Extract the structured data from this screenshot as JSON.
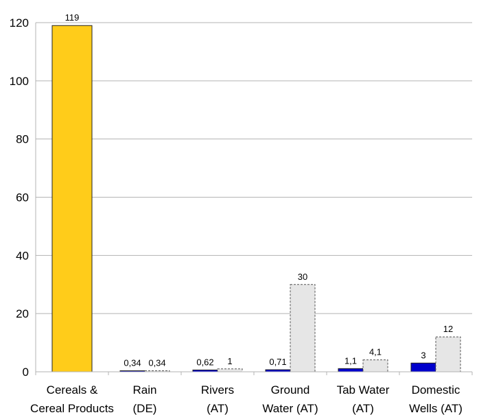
{
  "chart_data": {
    "type": "bar",
    "categories": [
      [
        "Cereals &",
        "Cereal Products"
      ],
      [
        "Rain",
        "(DE)"
      ],
      [
        "Rivers",
        "(AT)"
      ],
      [
        "Ground",
        "Water (AT)"
      ],
      [
        "Tab Water",
        "(AT)"
      ],
      [
        "Domestic",
        "Wells (AT)"
      ]
    ],
    "series": [
      {
        "values": [
          119,
          0.34,
          0.62,
          0.71,
          1.1,
          3
        ],
        "labels": [
          "119",
          "0,34",
          "0,62",
          "0,71",
          "1,1",
          "3"
        ],
        "color": "#0000cc",
        "first_color": "#ffcc1a",
        "style": "solid"
      },
      {
        "values": [
          null,
          0.34,
          1,
          30,
          4.1,
          12
        ],
        "labels": [
          null,
          "0,34",
          "1",
          "30",
          "4,1",
          "12"
        ],
        "color": "#e6e6e6",
        "style": "dashed"
      }
    ],
    "yticks": [
      0,
      20,
      40,
      60,
      80,
      100,
      120
    ],
    "ylim": [
      0,
      120
    ],
    "grid": true,
    "title": "",
    "xlabel": "",
    "ylabel": ""
  }
}
